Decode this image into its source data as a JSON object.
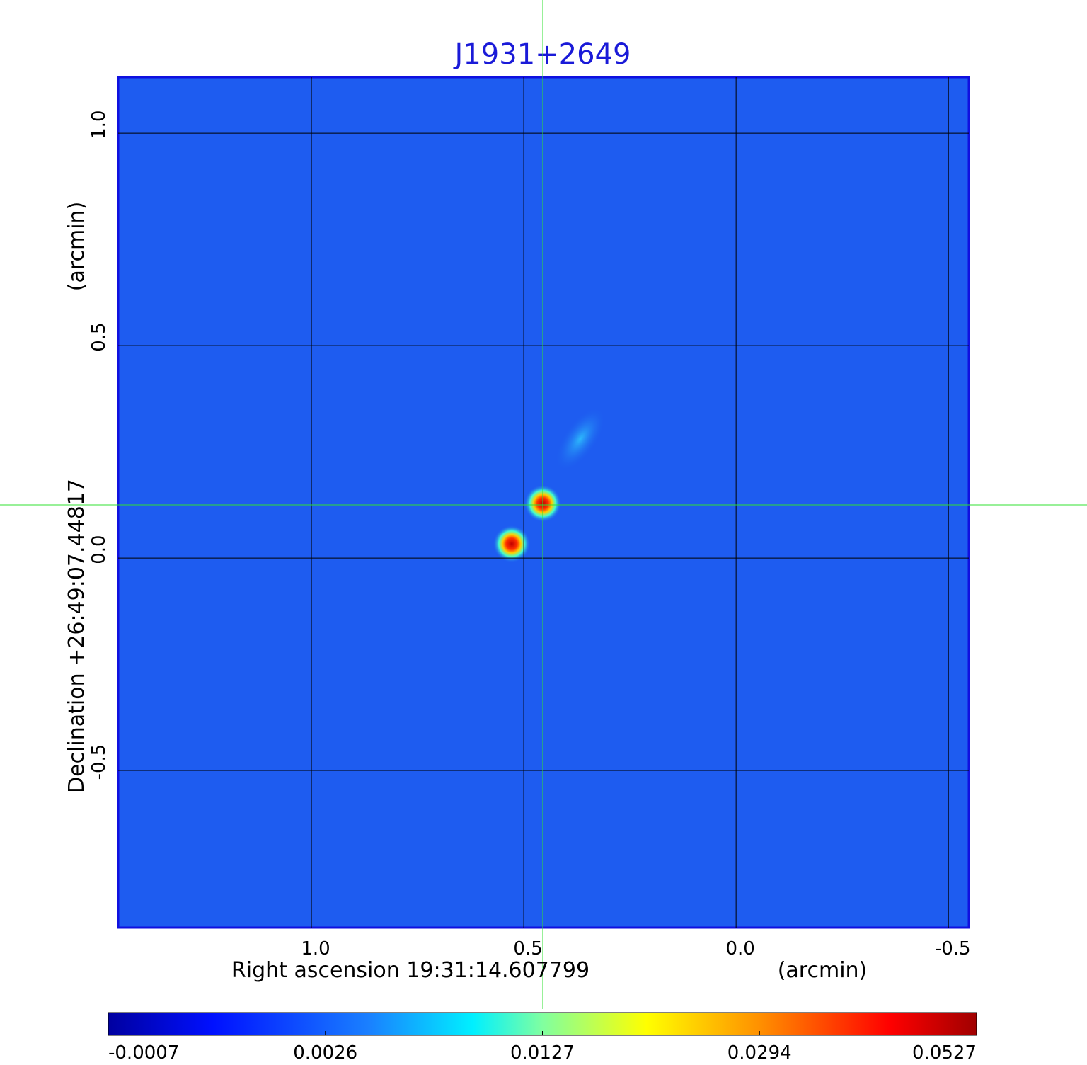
{
  "chart_data": {
    "type": "image",
    "title": "J1931+2649",
    "x_label": "Right ascension  19:31:14.607799",
    "x_unit": "(arcmin)",
    "y_label": "Declination  +26:49:07.44817",
    "y_unit": "(arcmin)",
    "xlim": [
      1.455,
      -0.548
    ],
    "ylim": [
      -0.87,
      1.132
    ],
    "xticks": [
      {
        "value": 1.0,
        "label": "1.0"
      },
      0.5,
      {
        "value": 0,
        "label": "0.0"
      },
      -0.5
    ],
    "yticks": [
      {
        "value": 1.0,
        "label": "1.0"
      },
      0.5,
      {
        "value": 0,
        "label": "0.0"
      },
      -0.5
    ],
    "grid": true,
    "colorbar_ticks": [
      -0.0007,
      0.0026,
      0.0127,
      0.0294,
      0.0527
    ]
  }
}
